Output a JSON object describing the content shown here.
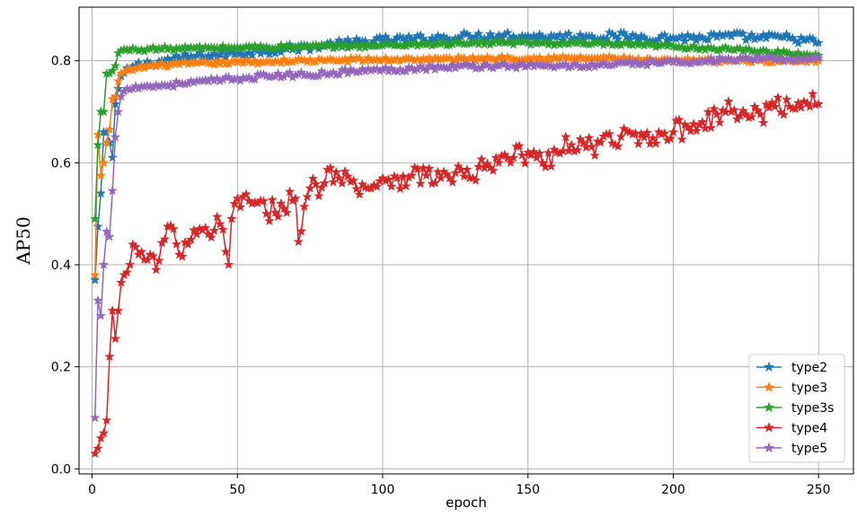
{
  "chart_data": {
    "type": "line",
    "title": "",
    "xlabel": "epoch",
    "ylabel": "AP50",
    "xlim": [
      -4.5,
      262
    ],
    "ylim": [
      -0.01,
      0.905
    ],
    "xticks": [
      0,
      50,
      100,
      150,
      200,
      250
    ],
    "yticks": [
      0.0,
      0.2,
      0.4,
      0.6,
      0.8
    ],
    "ytick_labels": [
      "0.0",
      "0.2",
      "0.4",
      "0.6",
      "0.8"
    ],
    "grid": true,
    "legend_position": "lower-right",
    "marker": "star",
    "series": [
      {
        "name": "type2",
        "color": "#1f77b4",
        "points": [
          [
            1,
            0.37
          ],
          [
            2,
            0.475
          ],
          [
            3,
            0.54
          ],
          [
            4,
            0.66
          ],
          [
            5,
            0.66
          ],
          [
            6,
            0.64
          ],
          [
            7,
            0.61
          ],
          [
            8,
            0.715
          ],
          [
            9,
            0.745
          ],
          [
            10,
            0.77
          ],
          [
            15,
            0.79
          ],
          [
            20,
            0.795
          ],
          [
            30,
            0.805
          ],
          [
            40,
            0.81
          ],
          [
            50,
            0.815
          ],
          [
            60,
            0.82
          ],
          [
            70,
            0.825
          ],
          [
            80,
            0.83
          ],
          [
            90,
            0.835
          ],
          [
            100,
            0.84
          ],
          [
            110,
            0.842
          ],
          [
            120,
            0.845
          ],
          [
            130,
            0.848
          ],
          [
            140,
            0.85
          ],
          [
            150,
            0.848
          ],
          [
            160,
            0.847
          ],
          [
            170,
            0.848
          ],
          [
            180,
            0.848
          ],
          [
            190,
            0.846
          ],
          [
            200,
            0.845
          ],
          [
            210,
            0.845
          ],
          [
            220,
            0.848
          ],
          [
            230,
            0.845
          ],
          [
            240,
            0.845
          ],
          [
            250,
            0.835
          ]
        ]
      },
      {
        "name": "type3",
        "color": "#ff7f0e",
        "points": [
          [
            1,
            0.38
          ],
          [
            2,
            0.655
          ],
          [
            3,
            0.575
          ],
          [
            4,
            0.6
          ],
          [
            5,
            0.64
          ],
          [
            6,
            0.665
          ],
          [
            7,
            0.725
          ],
          [
            8,
            0.73
          ],
          [
            9,
            0.76
          ],
          [
            10,
            0.775
          ],
          [
            15,
            0.785
          ],
          [
            20,
            0.79
          ],
          [
            30,
            0.793
          ],
          [
            40,
            0.795
          ],
          [
            50,
            0.797
          ],
          [
            60,
            0.798
          ],
          [
            70,
            0.8
          ],
          [
            80,
            0.8
          ],
          [
            90,
            0.802
          ],
          [
            100,
            0.802
          ],
          [
            110,
            0.803
          ],
          [
            120,
            0.803
          ],
          [
            130,
            0.804
          ],
          [
            140,
            0.805
          ],
          [
            150,
            0.805
          ],
          [
            160,
            0.805
          ],
          [
            170,
            0.805
          ],
          [
            180,
            0.805
          ],
          [
            190,
            0.8
          ],
          [
            200,
            0.8
          ],
          [
            210,
            0.8
          ],
          [
            220,
            0.8
          ],
          [
            230,
            0.8
          ],
          [
            240,
            0.8
          ],
          [
            250,
            0.8
          ]
        ]
      },
      {
        "name": "type3s",
        "color": "#2ca02c",
        "points": [
          [
            1,
            0.49
          ],
          [
            2,
            0.635
          ],
          [
            3,
            0.7
          ],
          [
            4,
            0.7
          ],
          [
            5,
            0.775
          ],
          [
            6,
            0.775
          ],
          [
            7,
            0.78
          ],
          [
            8,
            0.79
          ],
          [
            9,
            0.815
          ],
          [
            10,
            0.82
          ],
          [
            15,
            0.822
          ],
          [
            20,
            0.823
          ],
          [
            30,
            0.824
          ],
          [
            40,
            0.825
          ],
          [
            50,
            0.826
          ],
          [
            60,
            0.827
          ],
          [
            70,
            0.827
          ],
          [
            80,
            0.828
          ],
          [
            90,
            0.829
          ],
          [
            100,
            0.83
          ],
          [
            110,
            0.832
          ],
          [
            120,
            0.833
          ],
          [
            130,
            0.834
          ],
          [
            140,
            0.835
          ],
          [
            150,
            0.835
          ],
          [
            160,
            0.834
          ],
          [
            170,
            0.833
          ],
          [
            180,
            0.832
          ],
          [
            190,
            0.83
          ],
          [
            200,
            0.828
          ],
          [
            210,
            0.825
          ],
          [
            220,
            0.822
          ],
          [
            230,
            0.818
          ],
          [
            240,
            0.815
          ],
          [
            250,
            0.81
          ]
        ]
      },
      {
        "name": "type4",
        "color": "#d62728",
        "points": [
          [
            1,
            0.03
          ],
          [
            2,
            0.04
          ],
          [
            3,
            0.06
          ],
          [
            4,
            0.07
          ],
          [
            5,
            0.095
          ],
          [
            6,
            0.22
          ],
          [
            7,
            0.31
          ],
          [
            8,
            0.255
          ],
          [
            9,
            0.31
          ],
          [
            10,
            0.365
          ],
          [
            11,
            0.38
          ],
          [
            12,
            0.385
          ],
          [
            13,
            0.4
          ],
          [
            14,
            0.44
          ],
          [
            15,
            0.435
          ],
          [
            16,
            0.42
          ],
          [
            18,
            0.41
          ],
          [
            20,
            0.42
          ],
          [
            22,
            0.39
          ],
          [
            25,
            0.45
          ],
          [
            28,
            0.47
          ],
          [
            30,
            0.42
          ],
          [
            33,
            0.44
          ],
          [
            36,
            0.46
          ],
          [
            40,
            0.46
          ],
          [
            44,
            0.48
          ],
          [
            47,
            0.4
          ],
          [
            48,
            0.49
          ],
          [
            50,
            0.53
          ],
          [
            55,
            0.52
          ],
          [
            60,
            0.5
          ],
          [
            65,
            0.52
          ],
          [
            70,
            0.53
          ],
          [
            71,
            0.445
          ],
          [
            75,
            0.55
          ],
          [
            80,
            0.56
          ],
          [
            82,
            0.59
          ],
          [
            85,
            0.57
          ],
          [
            90,
            0.565
          ],
          [
            95,
            0.55
          ],
          [
            100,
            0.57
          ],
          [
            105,
            0.57
          ],
          [
            110,
            0.575
          ],
          [
            115,
            0.575
          ],
          [
            120,
            0.57
          ],
          [
            125,
            0.58
          ],
          [
            130,
            0.57
          ],
          [
            135,
            0.59
          ],
          [
            140,
            0.6
          ],
          [
            145,
            0.61
          ],
          [
            150,
            0.62
          ],
          [
            155,
            0.6
          ],
          [
            160,
            0.62
          ],
          [
            165,
            0.635
          ],
          [
            170,
            0.63
          ],
          [
            175,
            0.64
          ],
          [
            180,
            0.635
          ],
          [
            185,
            0.66
          ],
          [
            190,
            0.65
          ],
          [
            195,
            0.66
          ],
          [
            200,
            0.66
          ],
          [
            205,
            0.67
          ],
          [
            210,
            0.68
          ],
          [
            215,
            0.695
          ],
          [
            220,
            0.7
          ],
          [
            225,
            0.695
          ],
          [
            230,
            0.695
          ],
          [
            235,
            0.71
          ],
          [
            240,
            0.71
          ],
          [
            245,
            0.72
          ],
          [
            248,
            0.735
          ],
          [
            250,
            0.715
          ]
        ]
      },
      {
        "name": "type5",
        "color": "#9467bd",
        "points": [
          [
            1,
            0.1
          ],
          [
            2,
            0.33
          ],
          [
            3,
            0.3
          ],
          [
            4,
            0.4
          ],
          [
            5,
            0.465
          ],
          [
            6,
            0.455
          ],
          [
            7,
            0.545
          ],
          [
            8,
            0.65
          ],
          [
            9,
            0.7
          ],
          [
            10,
            0.73
          ],
          [
            12,
            0.745
          ],
          [
            15,
            0.75
          ],
          [
            20,
            0.75
          ],
          [
            25,
            0.752
          ],
          [
            30,
            0.755
          ],
          [
            40,
            0.76
          ],
          [
            50,
            0.765
          ],
          [
            60,
            0.77
          ],
          [
            70,
            0.772
          ],
          [
            80,
            0.775
          ],
          [
            90,
            0.78
          ],
          [
            100,
            0.782
          ],
          [
            110,
            0.785
          ],
          [
            120,
            0.787
          ],
          [
            130,
            0.789
          ],
          [
            140,
            0.79
          ],
          [
            150,
            0.79
          ],
          [
            160,
            0.79
          ],
          [
            170,
            0.79
          ],
          [
            180,
            0.793
          ],
          [
            190,
            0.795
          ],
          [
            200,
            0.797
          ],
          [
            210,
            0.8
          ],
          [
            220,
            0.802
          ],
          [
            230,
            0.803
          ],
          [
            240,
            0.803
          ],
          [
            250,
            0.805
          ]
        ]
      }
    ]
  }
}
